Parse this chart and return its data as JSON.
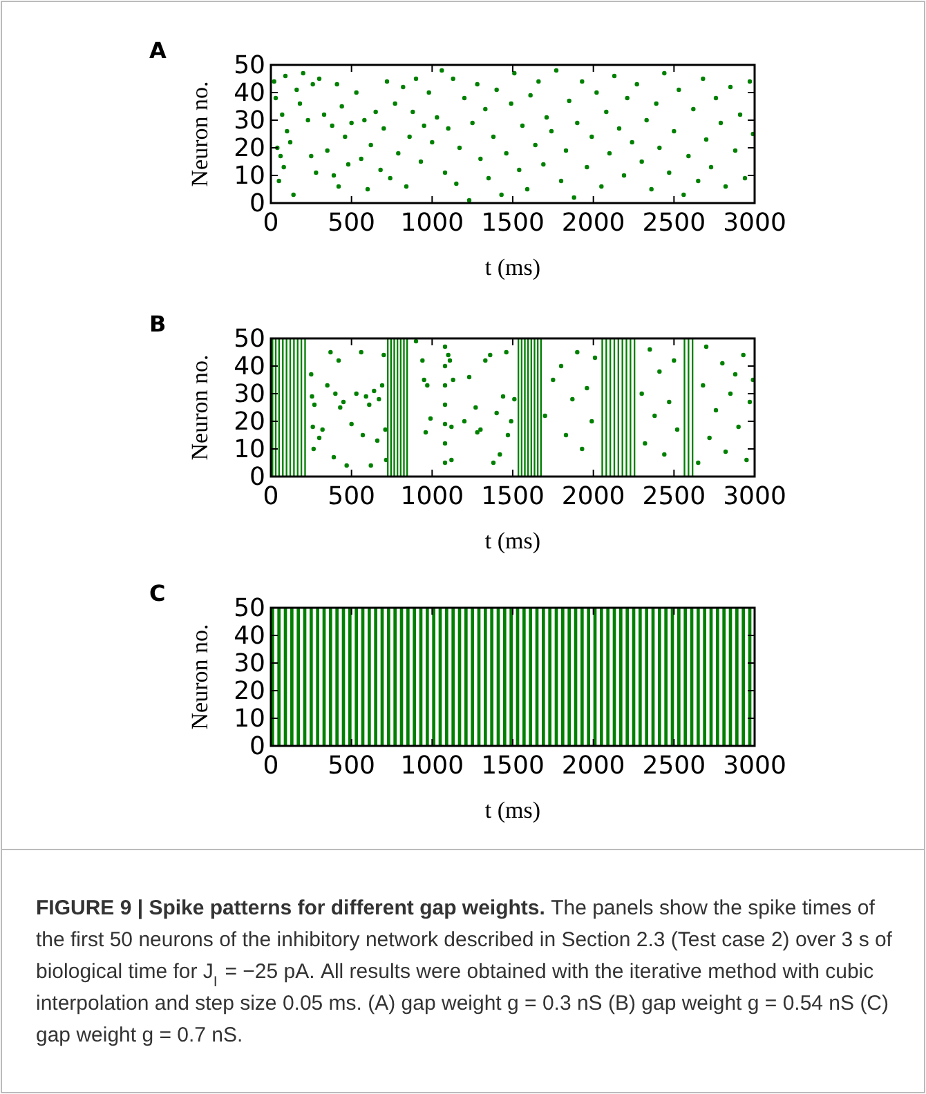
{
  "chart_data": [
    {
      "type": "scatter",
      "title": "A",
      "xlabel": "t  (ms)",
      "ylabel": "Neuron no.",
      "xlim": [
        0,
        3000
      ],
      "ylim": [
        0,
        50
      ],
      "xticks": [
        0,
        500,
        1000,
        1500,
        2000,
        2500,
        3000
      ],
      "yticks": [
        0,
        10,
        20,
        30,
        40,
        50
      ],
      "marker": "circle",
      "color": "#008000",
      "x": [
        20,
        30,
        40,
        50,
        60,
        70,
        80,
        90,
        100,
        120,
        140,
        160,
        180,
        200,
        230,
        250,
        260,
        280,
        300,
        330,
        350,
        380,
        390,
        410,
        420,
        440,
        460,
        480,
        500,
        530,
        560,
        580,
        600,
        620,
        650,
        680,
        700,
        720,
        740,
        770,
        790,
        820,
        840,
        860,
        880,
        900,
        930,
        950,
        980,
        1000,
        1030,
        1060,
        1080,
        1100,
        1130,
        1150,
        1170,
        1200,
        1230,
        1250,
        1280,
        1300,
        1330,
        1350,
        1380,
        1400,
        1430,
        1460,
        1490,
        1510,
        1540,
        1560,
        1590,
        1610,
        1640,
        1660,
        1690,
        1710,
        1740,
        1770,
        1800,
        1830,
        1850,
        1880,
        1900,
        1930,
        1960,
        1990,
        2020,
        2050,
        2080,
        2100,
        2130,
        2160,
        2190,
        2210,
        2240,
        2270,
        2300,
        2330,
        2360,
        2390,
        2410,
        2440,
        2470,
        2500,
        2530,
        2560,
        2590,
        2620,
        2650,
        2680,
        2700,
        2730,
        2760,
        2790,
        2820,
        2850,
        2880,
        2910,
        2940,
        2970,
        2990
      ],
      "values": [
        44,
        38,
        20,
        8,
        17,
        32,
        13,
        46,
        26,
        22,
        3,
        41,
        36,
        47,
        30,
        17,
        43,
        11,
        45,
        32,
        19,
        28,
        10,
        43,
        6,
        35,
        24,
        14,
        29,
        40,
        16,
        30,
        5,
        21,
        33,
        12,
        27,
        44,
        9,
        36,
        18,
        42,
        6,
        24,
        33,
        45,
        15,
        28,
        40,
        22,
        31,
        48,
        11,
        27,
        45,
        7,
        20,
        38,
        1,
        29,
        43,
        16,
        34,
        9,
        24,
        41,
        3,
        18,
        36,
        47,
        12,
        28,
        5,
        39,
        21,
        44,
        14,
        31,
        26,
        48,
        8,
        19,
        37,
        2,
        29,
        44,
        13,
        24,
        40,
        6,
        33,
        18,
        46,
        27,
        10,
        38,
        22,
        43,
        15,
        30,
        5,
        36,
        20,
        47,
        11,
        26,
        41,
        3,
        17,
        34,
        8,
        45,
        23,
        13,
        38,
        29,
        6,
        42,
        19,
        32,
        9,
        44,
        25
      ]
    },
    {
      "type": "scatter",
      "title": "B",
      "xlabel": "t  (ms)",
      "ylabel": "Neuron no.",
      "xlim": [
        0,
        3000
      ],
      "ylim": [
        0,
        50
      ],
      "xticks": [
        0,
        500,
        1000,
        1500,
        2000,
        2500,
        3000
      ],
      "yticks": [
        0,
        10,
        20,
        30,
        40,
        50
      ],
      "marker": "circle",
      "series": [
        {
          "type": "bar",
          "color": "#008000",
          "x": [
            10,
            30,
            51,
            74,
            97,
            120,
            143,
            166,
            189,
            212,
            725,
            745,
            765,
            785,
            805,
            825,
            845,
            1535,
            1555,
            1575,
            1595,
            1615,
            1635,
            1655,
            1675,
            2055,
            2080,
            2105,
            2130,
            2155,
            2180,
            2205,
            2230,
            2255,
            2565,
            2590,
            2615
          ],
          "values": [
            50,
            50,
            50,
            50,
            50,
            50,
            50,
            50,
            50,
            50,
            50,
            50,
            50,
            50,
            50,
            50,
            50,
            50,
            50,
            50,
            50,
            50,
            50,
            50,
            50,
            50,
            50,
            50,
            50,
            50,
            50,
            50,
            50,
            50,
            50,
            50,
            50
          ]
        },
        {
          "color": "#008000",
          "x": [
            250,
            255,
            260,
            265,
            270,
            300,
            320,
            350,
            370,
            390,
            400,
            420,
            430,
            450,
            470,
            500,
            530,
            560,
            570,
            590,
            610,
            620,
            640,
            660,
            670,
            690,
            700,
            710,
            715,
            900,
            940,
            950,
            960,
            970,
            990,
            1080,
            1080,
            1080,
            1080,
            1080,
            1080,
            1080,
            1100,
            1110,
            1120,
            1120,
            1130,
            1200,
            1230,
            1270,
            1280,
            1300,
            1330,
            1360,
            1380,
            1400,
            1420,
            1440,
            1460,
            1470,
            1490,
            1510,
            1700,
            1750,
            1800,
            1830,
            1870,
            1900,
            1930,
            1960,
            1990,
            2010,
            2300,
            2320,
            2350,
            2380,
            2410,
            2440,
            2470,
            2500,
            2520,
            2650,
            2680,
            2700,
            2720,
            2760,
            2800,
            2820,
            2850,
            2880,
            2900,
            2930,
            2950,
            2970,
            2990
          ],
          "values": [
            37,
            29,
            18,
            10,
            26,
            14,
            17,
            33,
            45,
            7,
            30,
            42,
            25,
            27,
            4,
            19,
            30,
            45,
            15,
            29,
            26,
            4,
            31,
            13,
            28,
            33,
            44,
            17,
            6,
            49,
            42,
            35,
            16,
            33,
            21,
            5,
            12,
            19,
            26,
            33,
            40,
            47,
            44,
            42,
            18,
            6,
            35,
            20,
            36,
            25,
            16,
            17,
            42,
            44,
            5,
            23,
            8,
            29,
            45,
            15,
            20,
            28,
            22,
            35,
            40,
            15,
            28,
            45,
            10,
            32,
            20,
            43,
            30,
            12,
            46,
            22,
            38,
            8,
            27,
            42,
            17,
            5,
            33,
            47,
            14,
            24,
            41,
            9,
            30,
            37,
            18,
            44,
            6,
            27,
            35
          ]
        }
      ]
    },
    {
      "type": "bar",
      "title": "C",
      "xlabel": "t  (ms)",
      "ylabel": "Neuron no.",
      "xlim": [
        0,
        3000
      ],
      "ylim": [
        0,
        50
      ],
      "xticks": [
        0,
        500,
        1000,
        1500,
        2000,
        2500,
        3000
      ],
      "yticks": [
        0,
        10,
        20,
        30,
        40,
        50
      ],
      "color": "#008000",
      "x": [
        10,
        50,
        90,
        130,
        170,
        210,
        250,
        290,
        330,
        370,
        410,
        450,
        490,
        530,
        570,
        610,
        650,
        690,
        730,
        770,
        810,
        850,
        890,
        930,
        970,
        1010,
        1050,
        1090,
        1130,
        1170,
        1210,
        1250,
        1290,
        1330,
        1370,
        1410,
        1450,
        1490,
        1530,
        1570,
        1610,
        1650,
        1690,
        1730,
        1770,
        1810,
        1850,
        1890,
        1930,
        1970,
        2010,
        2050,
        2090,
        2130,
        2170,
        2210,
        2250,
        2290,
        2330,
        2370,
        2410,
        2450,
        2490,
        2530,
        2570,
        2610,
        2650,
        2690,
        2730,
        2770,
        2810,
        2850,
        2890,
        2930,
        2970
      ],
      "values": [
        50,
        50,
        50,
        50,
        50,
        50,
        50,
        50,
        50,
        50,
        50,
        50,
        50,
        50,
        50,
        50,
        50,
        50,
        50,
        50,
        50,
        50,
        50,
        50,
        50,
        50,
        50,
        50,
        50,
        50,
        50,
        50,
        50,
        50,
        50,
        50,
        50,
        50,
        50,
        50,
        50,
        50,
        50,
        50,
        50,
        50,
        50,
        50,
        50,
        50,
        50,
        50,
        50,
        50,
        50,
        50,
        50,
        50,
        50,
        50,
        50,
        50,
        50,
        50,
        50,
        50,
        50,
        50,
        50,
        50,
        50,
        50,
        50,
        50,
        50
      ],
      "annotations": [
        "FIGURE 9 | Spike patterns for different gap weights.",
        "The panels show the spike times of the first 50 neurons of the inhibitory network described in Section 2.3 (Test case 2) over 3 s of biological time for J$_{I}$ = −25 pA. All results were obtained with the iterative method with cubic interpolation and step size 0.05 ms. (A) gap weight g = 0.3 nS (B) gap weight g = 0.54 nS (C) gap weight g = 0.7 nS."
      ]
    }
  ]
}
